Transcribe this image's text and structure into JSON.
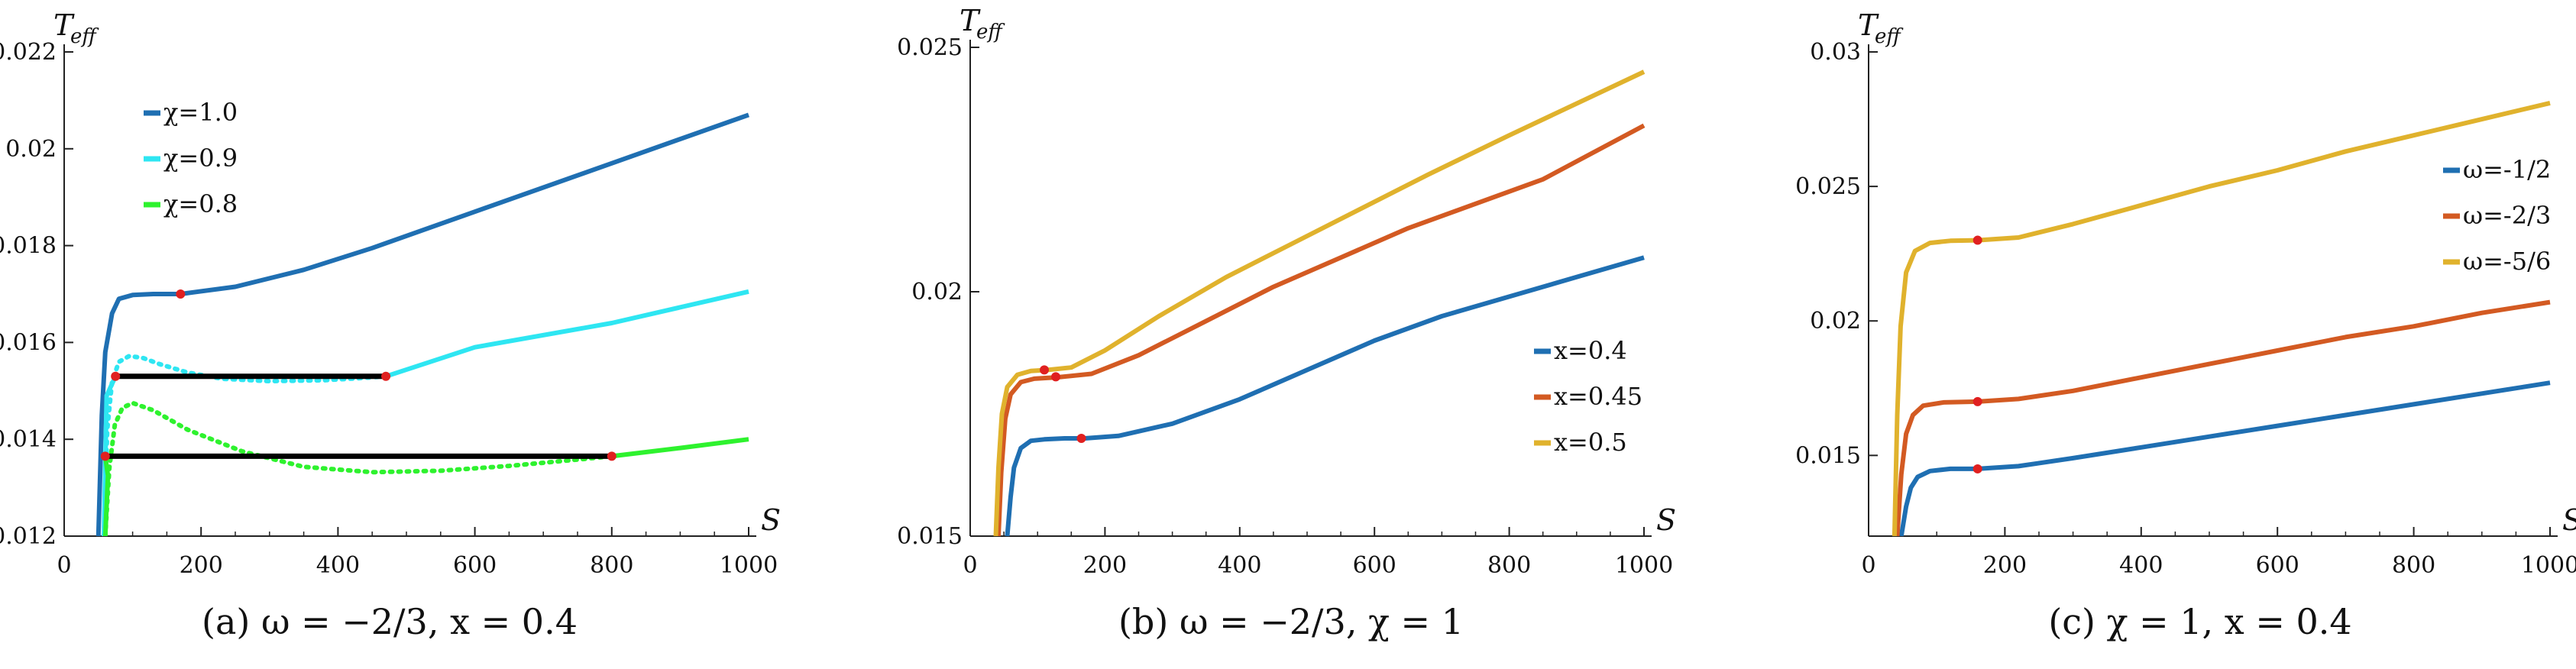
{
  "chart_data": [
    {
      "type": "line",
      "caption": "(a) ω = −2/3,  x = 0.4",
      "xlabel": "S",
      "ylabel": "T",
      "ylabel_sub": "eff",
      "xlim": [
        0,
        1000
      ],
      "ylim": [
        0.012,
        0.022
      ],
      "xticks": [
        "0",
        "200",
        "400",
        "600",
        "800",
        "1000"
      ],
      "yticks": [
        "0.012",
        "0.014",
        "0.016",
        "0.018",
        "0.02",
        "0.022"
      ],
      "legend_position": "top-left",
      "series": [
        {
          "name": "χ=1.0",
          "color": "#1f6fb2",
          "x": [
            50,
            55,
            60,
            70,
            80,
            100,
            130,
            170,
            250,
            350,
            450,
            600,
            800,
            1000
          ],
          "y": [
            0.012,
            0.0145,
            0.0158,
            0.0166,
            0.0169,
            0.01698,
            0.017,
            0.017,
            0.01715,
            0.0175,
            0.01795,
            0.0187,
            0.0197,
            0.0207
          ],
          "critical_point": [
            170,
            0.017
          ]
        },
        {
          "name": "χ=0.9",
          "color": "#2ee6f2",
          "x": [
            470,
            600,
            800,
            1000
          ],
          "y": [
            0.0153,
            0.0159,
            0.0164,
            0.01705
          ],
          "unstable": {
            "x": [
              58,
              63,
              70,
              80,
              95,
              115,
              140,
              180,
              230,
              300,
              380,
              440,
              470
            ],
            "y": [
              0.012,
              0.0142,
              0.0152,
              0.0156,
              0.01572,
              0.01568,
              0.01555,
              0.01538,
              0.01525,
              0.0152,
              0.01522,
              0.01527,
              0.0153
            ]
          },
          "maxwell_line": {
            "x": [
              75,
              470
            ],
            "y": [
              0.0153,
              0.0153
            ]
          }
        },
        {
          "name": "χ=0.8",
          "color": "#2ef22e",
          "x": [
            800,
            900,
            1000
          ],
          "y": [
            0.01365,
            0.01382,
            0.014
          ],
          "unstable": {
            "x": [
              60,
              66,
              74,
              85,
              100,
              130,
              180,
              260,
              350,
              450,
              550,
              650,
              750,
              800
            ],
            "y": [
              0.012,
              0.0134,
              0.0143,
              0.01465,
              0.01475,
              0.0146,
              0.0142,
              0.01375,
              0.01343,
              0.01332,
              0.01335,
              0.01345,
              0.01358,
              0.01365
            ]
          },
          "maxwell_line": {
            "x": [
              60,
              800
            ],
            "y": [
              0.01365,
              0.01365
            ]
          }
        }
      ]
    },
    {
      "type": "line",
      "caption": "(b) ω = −2/3,  χ = 1",
      "xlabel": "S",
      "ylabel": "T",
      "ylabel_sub": "eff",
      "xlim": [
        0,
        1000
      ],
      "ylim": [
        0.015,
        0.025
      ],
      "xticks": [
        "0",
        "200",
        "400",
        "600",
        "800",
        "1000"
      ],
      "yticks": [
        "0.015",
        "0.02",
        "0.025"
      ],
      "legend_position": "right",
      "series": [
        {
          "name": "x=0.4",
          "color": "#1f6fb2",
          "x": [
            55,
            60,
            65,
            75,
            90,
            110,
            140,
            170,
            220,
            300,
            400,
            500,
            600,
            700,
            800,
            900,
            1000
          ],
          "y": [
            0.015,
            0.0158,
            0.0164,
            0.0168,
            0.01695,
            0.01698,
            0.017,
            0.017,
            0.01705,
            0.0173,
            0.0178,
            0.0184,
            0.019,
            0.0195,
            0.0199,
            0.0203,
            0.0207
          ],
          "critical_point": [
            165,
            0.017
          ]
        },
        {
          "name": "x=0.45",
          "color": "#d35a22",
          "x": [
            42,
            46,
            52,
            60,
            75,
            95,
            130,
            180,
            250,
            350,
            450,
            550,
            650,
            750,
            850,
            1000
          ],
          "y": [
            0.015,
            0.0163,
            0.0174,
            0.0179,
            0.01815,
            0.01822,
            0.01825,
            0.01832,
            0.0187,
            0.0194,
            0.0201,
            0.0207,
            0.0213,
            0.0218,
            0.0223,
            0.0234
          ],
          "critical_point": [
            127,
            0.01826
          ]
        },
        {
          "name": "x=0.5",
          "color": "#e0b22d",
          "x": [
            38,
            42,
            47,
            55,
            70,
            90,
            115,
            150,
            200,
            280,
            380,
            480,
            580,
            680,
            800,
            1000
          ],
          "y": [
            0.015,
            0.0164,
            0.0175,
            0.01805,
            0.0183,
            0.01838,
            0.0184,
            0.01845,
            0.0188,
            0.0195,
            0.0203,
            0.021,
            0.0217,
            0.0224,
            0.0232,
            0.0245
          ],
          "critical_point": [
            110,
            0.0184
          ]
        }
      ]
    },
    {
      "type": "line",
      "caption": "(c) χ = 1,  x = 0.4",
      "xlabel": "S",
      "ylabel": "T",
      "ylabel_sub": "eff",
      "xlim": [
        0,
        1000
      ],
      "ylim": [
        0.012,
        0.03
      ],
      "xticks": [
        "0",
        "200",
        "400",
        "600",
        "800",
        "1000"
      ],
      "yticks": [
        "0.015",
        "0.02",
        "0.025",
        "0.03"
      ],
      "legend_position": "right",
      "series": [
        {
          "name": "ω=-1/2",
          "color": "#1f6fb2",
          "x": [
            48,
            55,
            62,
            72,
            90,
            120,
            160,
            220,
            300,
            400,
            500,
            600,
            700,
            800,
            900,
            1000
          ],
          "y": [
            0.012,
            0.0131,
            0.0138,
            0.0142,
            0.01442,
            0.0145,
            0.0145,
            0.0146,
            0.0149,
            0.0153,
            0.0157,
            0.0161,
            0.0165,
            0.0169,
            0.0173,
            0.0177
          ],
          "critical_point": [
            160,
            0.0145
          ]
        },
        {
          "name": "ω=-2/3",
          "color": "#d35a22",
          "x": [
            42,
            48,
            55,
            65,
            80,
            110,
            160,
            220,
            300,
            400,
            500,
            600,
            700,
            800,
            900,
            1000
          ],
          "y": [
            0.012,
            0.0143,
            0.0158,
            0.0165,
            0.01685,
            0.01697,
            0.017,
            0.0171,
            0.0174,
            0.0179,
            0.0184,
            0.0189,
            0.0194,
            0.0198,
            0.0203,
            0.0207
          ],
          "critical_point": [
            160,
            0.017
          ]
        },
        {
          "name": "ω=-5/6",
          "color": "#e0b22d",
          "x": [
            38,
            42,
            47,
            55,
            68,
            90,
            120,
            160,
            220,
            300,
            400,
            500,
            600,
            700,
            800,
            900,
            1000
          ],
          "y": [
            0.012,
            0.0165,
            0.0198,
            0.0218,
            0.0226,
            0.0229,
            0.02298,
            0.023,
            0.0231,
            0.0236,
            0.0243,
            0.025,
            0.0256,
            0.0263,
            0.0269,
            0.0275,
            0.0281
          ],
          "critical_point": [
            160,
            0.023
          ]
        }
      ]
    }
  ]
}
